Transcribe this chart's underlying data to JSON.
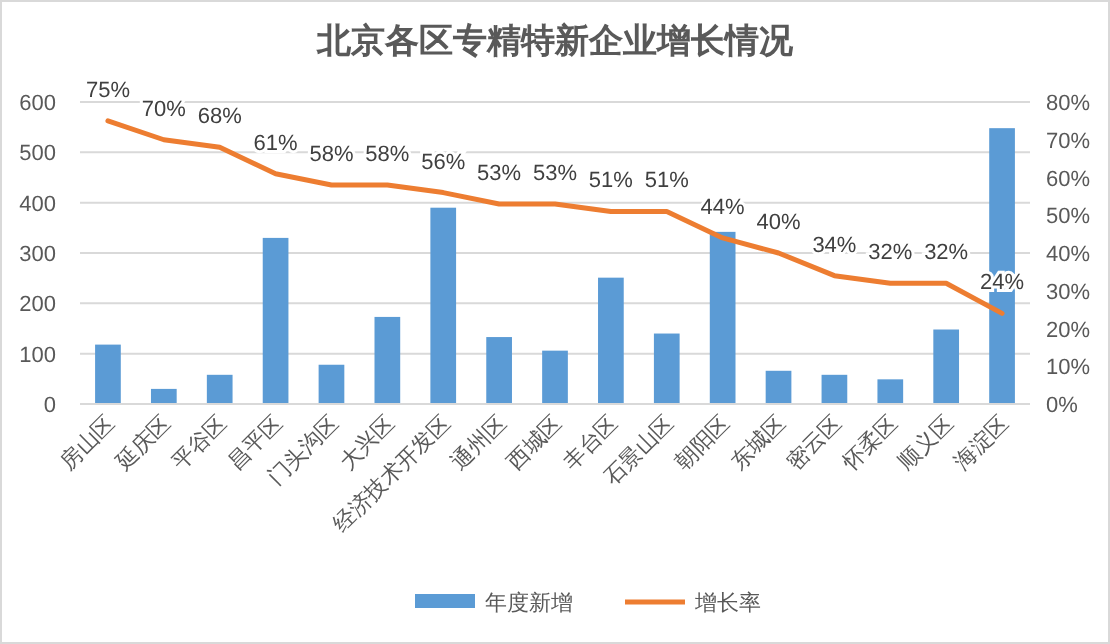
{
  "chart_data": {
    "type": "bar",
    "title": "北京各区专精特新企业增长情况",
    "categories": [
      "房山区",
      "延庆区",
      "平谷区",
      "昌平区",
      "门头沟区",
      "大兴区",
      "经济技术开发区",
      "通州区",
      "西城区",
      "丰台区",
      "石景山区",
      "朝阳区",
      "东城区",
      "密云区",
      "怀柔区",
      "顺义区",
      "海淀区"
    ],
    "series": [
      {
        "name": "年度新增",
        "color": "#5b9bd5",
        "values": [
          118,
          30,
          58,
          330,
          78,
          173,
          390,
          133,
          106,
          251,
          140,
          342,
          66,
          58,
          49,
          148,
          548
        ]
      },
      {
        "name": "增长率",
        "color": "#ed7d31",
        "type": "line",
        "axis": "y2",
        "values": [
          75,
          70,
          68,
          61,
          58,
          58,
          56,
          53,
          53,
          51,
          51,
          44,
          40,
          34,
          32,
          32,
          24
        ],
        "value_labels": [
          "75%",
          "70%",
          "68%",
          "61%",
          "58%",
          "58%",
          "56%",
          "53%",
          "53%",
          "51%",
          "51%",
          "44%",
          "40%",
          "34%",
          "32%",
          "32%",
          "24%"
        ]
      }
    ],
    "ylim": [
      0,
      600
    ],
    "yticks": [
      0,
      100,
      200,
      300,
      400,
      500,
      600
    ],
    "y2lim": [
      0,
      80
    ],
    "y2ticks": [
      {
        "value": 0,
        "label": "0%"
      },
      {
        "value": 10,
        "label": "10%"
      },
      {
        "value": 20,
        "label": "20%"
      },
      {
        "value": 30,
        "label": "30%"
      },
      {
        "value": 40,
        "label": "40%"
      },
      {
        "value": 50,
        "label": "50%"
      },
      {
        "value": 60,
        "label": "60%"
      },
      {
        "value": 70,
        "label": "70%"
      },
      {
        "value": 80,
        "label": "80%"
      }
    ],
    "grid": "y",
    "legend": "bottom",
    "marker": "none"
  }
}
